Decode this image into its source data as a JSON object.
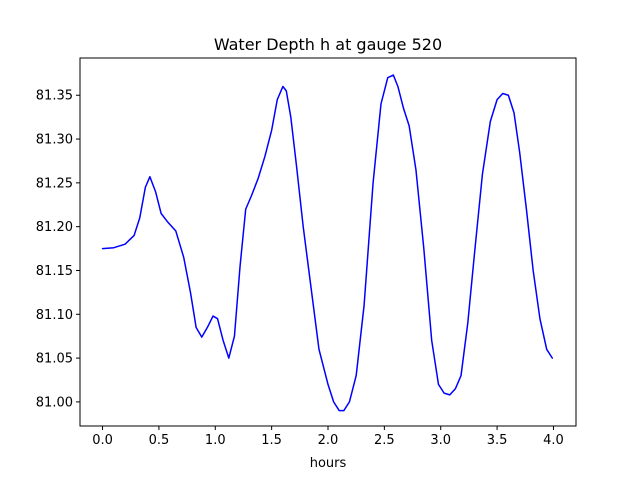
{
  "chart_data": {
    "type": "line",
    "title": "Water Depth h at gauge 520",
    "xlabel": "hours",
    "ylabel": "",
    "xlim": [
      -0.2,
      4.2
    ],
    "ylim": [
      80.9725,
      81.3925
    ],
    "xticks": [
      0.0,
      0.5,
      1.0,
      1.5,
      2.0,
      2.5,
      3.0,
      3.5,
      4.0
    ],
    "xtick_labels": [
      "0.0",
      "0.5",
      "1.0",
      "1.5",
      "2.0",
      "2.5",
      "3.0",
      "3.5",
      "4.0"
    ],
    "yticks": [
      81.0,
      81.05,
      81.1,
      81.15,
      81.2,
      81.25,
      81.3,
      81.35
    ],
    "ytick_labels": [
      "81.00",
      "81.05",
      "81.10",
      "81.15",
      "81.20",
      "81.25",
      "81.30",
      "81.35"
    ],
    "grid": false,
    "series": [
      {
        "color": "#0000ff",
        "x": [
          0.0,
          0.1,
          0.2,
          0.28,
          0.33,
          0.38,
          0.42,
          0.47,
          0.52,
          0.58,
          0.65,
          0.72,
          0.78,
          0.83,
          0.88,
          0.93,
          0.98,
          1.02,
          1.07,
          1.12,
          1.17,
          1.22,
          1.27,
          1.32,
          1.38,
          1.44,
          1.5,
          1.55,
          1.6,
          1.63,
          1.67,
          1.72,
          1.78,
          1.85,
          1.92,
          2.0,
          2.05,
          2.1,
          2.14,
          2.19,
          2.25,
          2.32,
          2.4,
          2.47,
          2.53,
          2.58,
          2.62,
          2.67,
          2.72,
          2.78,
          2.85,
          2.92,
          2.98,
          3.03,
          3.08,
          3.13,
          3.18,
          3.24,
          3.3,
          3.37,
          3.44,
          3.5,
          3.55,
          3.6,
          3.65,
          3.7,
          3.76,
          3.82,
          3.88,
          3.94,
          3.99
        ],
        "values": [
          81.175,
          81.176,
          81.18,
          81.19,
          81.21,
          81.245,
          81.257,
          81.24,
          81.215,
          81.205,
          81.195,
          81.165,
          81.125,
          81.085,
          81.074,
          81.085,
          81.098,
          81.095,
          81.07,
          81.05,
          81.075,
          81.155,
          81.22,
          81.235,
          81.255,
          81.28,
          81.31,
          81.345,
          81.36,
          81.355,
          81.325,
          81.27,
          81.2,
          81.13,
          81.06,
          81.02,
          81.0,
          80.99,
          80.99,
          81.0,
          81.03,
          81.11,
          81.25,
          81.34,
          81.37,
          81.373,
          81.36,
          81.335,
          81.315,
          81.265,
          81.175,
          81.07,
          81.02,
          81.01,
          81.008,
          81.015,
          81.03,
          81.09,
          81.17,
          81.26,
          81.32,
          81.345,
          81.352,
          81.35,
          81.33,
          81.285,
          81.22,
          81.15,
          81.095,
          81.06,
          81.05
        ]
      }
    ]
  }
}
